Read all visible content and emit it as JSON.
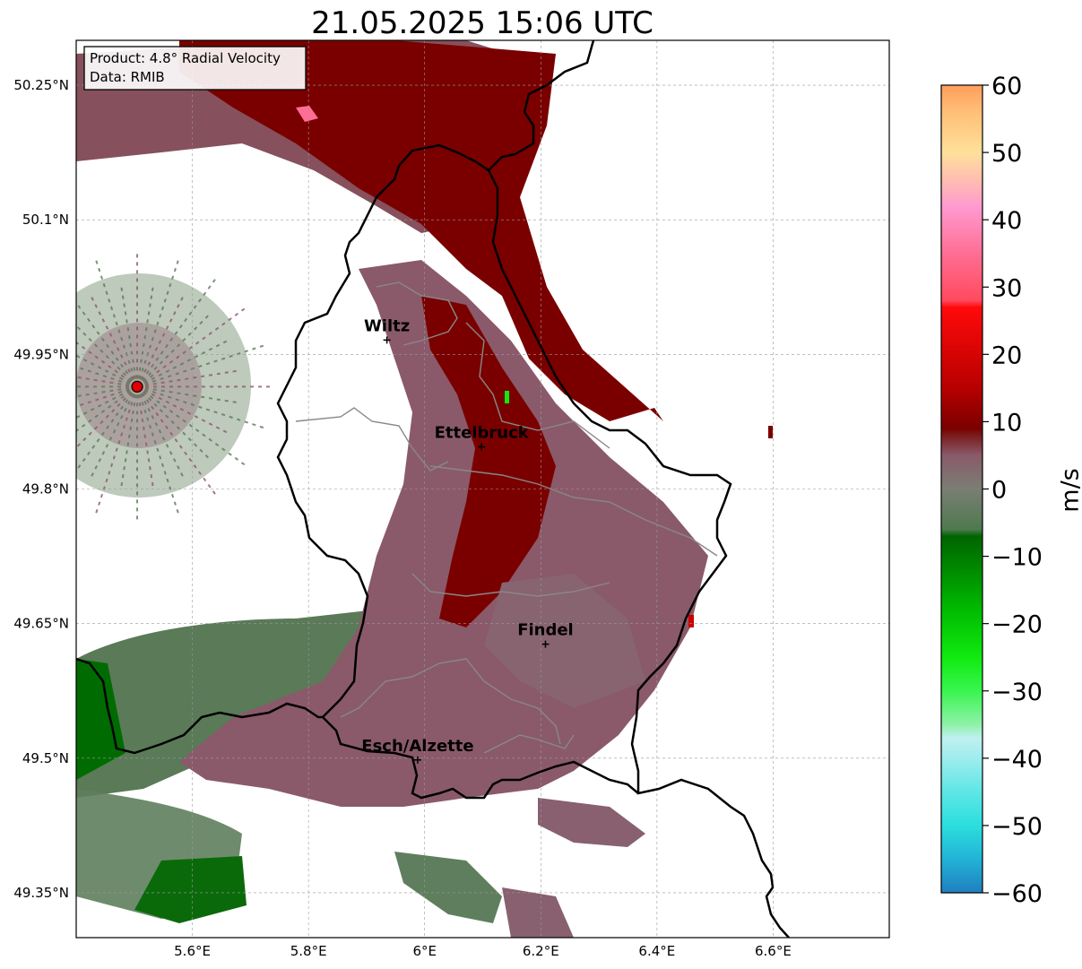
{
  "title": "21.05.2025 15:06 UTC",
  "info_box": {
    "line1": "Product: 4.8° Radial Velocity",
    "line2": "Data: RMIB"
  },
  "map": {
    "lon_range": [
      5.4,
      6.8
    ],
    "lat_range": [
      49.3,
      50.3
    ],
    "x_ticks": [
      {
        "value": 5.6,
        "label": "5.6°E"
      },
      {
        "value": 5.8,
        "label": "5.8°E"
      },
      {
        "value": 6.0,
        "label": "6°E"
      },
      {
        "value": 6.2,
        "label": "6.2°E"
      },
      {
        "value": 6.4,
        "label": "6.4°E"
      },
      {
        "value": 6.6,
        "label": "6.6°E"
      }
    ],
    "y_ticks": [
      {
        "value": 50.25,
        "label": "50.25°N"
      },
      {
        "value": 50.1,
        "label": "50.1°N"
      },
      {
        "value": 49.95,
        "label": "49.95°N"
      },
      {
        "value": 49.8,
        "label": "49.8°N"
      },
      {
        "value": 49.65,
        "label": "49.65°N"
      },
      {
        "value": 49.5,
        "label": "49.5°N"
      },
      {
        "value": 49.35,
        "label": "49.35°N"
      }
    ],
    "grid": true,
    "radar_site": {
      "lon": 5.505,
      "lat": 49.914,
      "color": "#e00000"
    },
    "cities": [
      {
        "name": "Wiltz",
        "lon": 5.935,
        "lat": 49.966
      },
      {
        "name": "Ettelbruck",
        "lon": 6.098,
        "lat": 49.847
      },
      {
        "name": "Findel",
        "lon": 6.208,
        "lat": 49.627
      },
      {
        "name": "Esch/Alzette",
        "lon": 5.988,
        "lat": 49.498
      }
    ]
  },
  "colorbar": {
    "label": "m/s",
    "min": -60,
    "max": 60,
    "ticks": [
      {
        "value": 60,
        "label": "60"
      },
      {
        "value": 50,
        "label": "50"
      },
      {
        "value": 40,
        "label": "40"
      },
      {
        "value": 30,
        "label": "30"
      },
      {
        "value": 20,
        "label": "20"
      },
      {
        "value": 10,
        "label": "10"
      },
      {
        "value": 0,
        "label": "0"
      },
      {
        "value": -10,
        "label": "−10"
      },
      {
        "value": -20,
        "label": "−20"
      },
      {
        "value": -30,
        "label": "−30"
      },
      {
        "value": -40,
        "label": "−40"
      },
      {
        "value": -50,
        "label": "−50"
      },
      {
        "value": -60,
        "label": "−60"
      }
    ],
    "stops": [
      {
        "value": -60,
        "color": "#1f7fbf"
      },
      {
        "value": -55,
        "color": "#22b3d6"
      },
      {
        "value": -50,
        "color": "#2bdede"
      },
      {
        "value": -45,
        "color": "#5fe6e6"
      },
      {
        "value": -40,
        "color": "#9eeded"
      },
      {
        "value": -37,
        "color": "#c0f0f0"
      },
      {
        "value": -35,
        "color": "#8ef2a8"
      },
      {
        "value": -30,
        "color": "#39f550"
      },
      {
        "value": -25,
        "color": "#10ea10"
      },
      {
        "value": -18,
        "color": "#00bb00"
      },
      {
        "value": -12,
        "color": "#008a00"
      },
      {
        "value": -7,
        "color": "#006400"
      },
      {
        "value": -6,
        "color": "#4e7a4e"
      },
      {
        "value": 0,
        "color": "#7a7e74"
      },
      {
        "value": 5,
        "color": "#8a5a6a"
      },
      {
        "value": 8,
        "color": "#7a1a1a"
      },
      {
        "value": 9,
        "color": "#7a0000"
      },
      {
        "value": 15,
        "color": "#b80000"
      },
      {
        "value": 27,
        "color": "#ff0a0a"
      },
      {
        "value": 28,
        "color": "#ff4a5e"
      },
      {
        "value": 35,
        "color": "#ff6e94"
      },
      {
        "value": 42,
        "color": "#ff9ad0"
      },
      {
        "value": 45,
        "color": "#ffb6b6"
      },
      {
        "value": 50,
        "color": "#ffe09a"
      },
      {
        "value": 56,
        "color": "#ffbf78"
      },
      {
        "value": 60,
        "color": "#ff9e5a"
      }
    ]
  }
}
